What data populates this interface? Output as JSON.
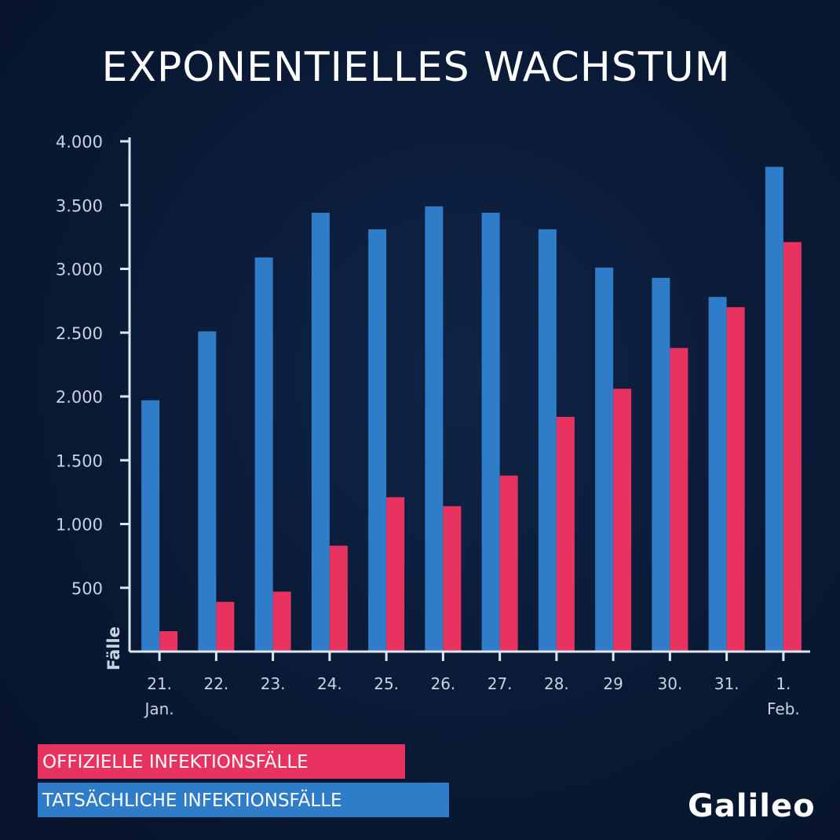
{
  "title": "EXPONENTIELLES WACHSTUM",
  "logo": "Galileo",
  "colors": {
    "official": "#e8325f",
    "actual": "#2f7cc9",
    "axis": "#dfe5ee",
    "background": "#0a1a35"
  },
  "chart_data": {
    "type": "bar",
    "title": "EXPONENTIELLES WACHSTUM",
    "ylabel": "Fälle",
    "xlabel": "",
    "ylim": [
      0,
      4000
    ],
    "yticks": [
      "4.000",
      "3.500",
      "3.000",
      "2.500",
      "2.000",
      "1.500",
      "1.000",
      "500"
    ],
    "ytick_values": [
      4000,
      3500,
      3000,
      2500,
      2000,
      1500,
      1000,
      500
    ],
    "categories": [
      [
        "21.",
        "Jan."
      ],
      [
        "22."
      ],
      [
        "23."
      ],
      [
        "24."
      ],
      [
        "25."
      ],
      [
        "26."
      ],
      [
        "27."
      ],
      [
        "28."
      ],
      [
        "29"
      ],
      [
        "30."
      ],
      [
        "31."
      ],
      [
        "1.",
        "Feb."
      ]
    ],
    "series": [
      {
        "name": "TATSÄCHLICHE INFEKTIONSFÄLLE",
        "color": "#2f7cc9",
        "values": [
          1970,
          2510,
          3090,
          3440,
          3310,
          3490,
          3440,
          3310,
          3010,
          2930,
          2780,
          3800
        ]
      },
      {
        "name": "OFFIZIELLE INFEKTIONSFÄLLE",
        "color": "#e8325f",
        "values": [
          160,
          390,
          470,
          830,
          1210,
          1140,
          1380,
          1840,
          2060,
          2380,
          2700,
          3210
        ]
      }
    ],
    "grid": false,
    "legend": "bottom-left"
  }
}
